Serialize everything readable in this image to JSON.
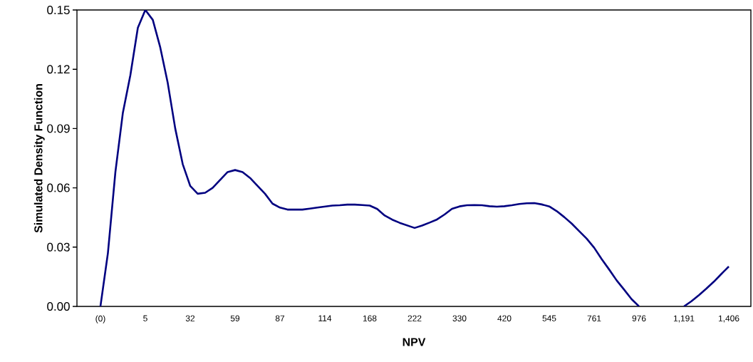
{
  "chart_data": {
    "type": "line",
    "xlabel": "NPV",
    "ylabel": "Simulated Density Function",
    "categories": [
      "(0)",
      null,
      null,
      null,
      null,
      null,
      "5",
      null,
      null,
      null,
      null,
      null,
      "32",
      null,
      null,
      null,
      null,
      null,
      "59",
      null,
      null,
      null,
      null,
      null,
      "87",
      null,
      null,
      null,
      null,
      null,
      "114",
      null,
      null,
      null,
      null,
      null,
      "168",
      null,
      null,
      null,
      null,
      null,
      "222",
      null,
      null,
      null,
      null,
      null,
      "330",
      null,
      null,
      null,
      null,
      null,
      "420",
      null,
      null,
      null,
      null,
      null,
      "545",
      null,
      null,
      null,
      null,
      null,
      "761",
      null,
      null,
      null,
      null,
      null,
      "976",
      null,
      null,
      null,
      null,
      null,
      "1,191",
      null,
      null,
      null,
      null,
      null,
      "1,406"
    ],
    "series": [
      {
        "color": "#000080",
        "values": [
          0,
          0.027,
          0.068,
          0.098,
          0.117,
          0.141,
          0.15,
          0.145,
          0.131,
          0.113,
          0.09,
          0.072,
          0.061,
          0.057,
          0.0575,
          0.06,
          0.064,
          0.068,
          0.069,
          0.068,
          0.065,
          0.061,
          0.057,
          0.052,
          0.05,
          0.049,
          0.049,
          0.049,
          0.0495,
          0.05,
          0.0505,
          0.051,
          0.0512,
          0.0515,
          0.0515,
          0.0513,
          0.051,
          0.0493,
          0.046,
          0.0439,
          0.0423,
          0.041,
          0.0397,
          0.0409,
          0.0424,
          0.044,
          0.0465,
          0.0494,
          0.0506,
          0.0512,
          0.0513,
          0.0512,
          0.0507,
          0.0505,
          0.0507,
          0.0512,
          0.0518,
          0.0522,
          0.0523,
          0.0516,
          0.0506,
          0.0482,
          0.0452,
          0.0419,
          0.0381,
          0.0343,
          0.0297,
          0.024,
          0.0187,
          0.0132,
          0.0085,
          0.0037,
          0,
          null,
          null,
          null,
          null,
          null,
          0,
          0.0026,
          0.0057,
          0.009,
          0.0125,
          0.0164,
          0.0202
        ]
      }
    ],
    "ylim": [
      0,
      0.15
    ],
    "yticks": [
      {
        "value": 0,
        "label": "0.00"
      },
      {
        "value": 0.03,
        "label": "0.03"
      },
      {
        "value": 0.06,
        "label": "0.06"
      },
      {
        "value": 0.09,
        "label": "0.09"
      },
      {
        "value": 0.12,
        "label": "0.12"
      },
      {
        "value": 0.15,
        "label": "0.15"
      }
    ],
    "grid": false
  }
}
